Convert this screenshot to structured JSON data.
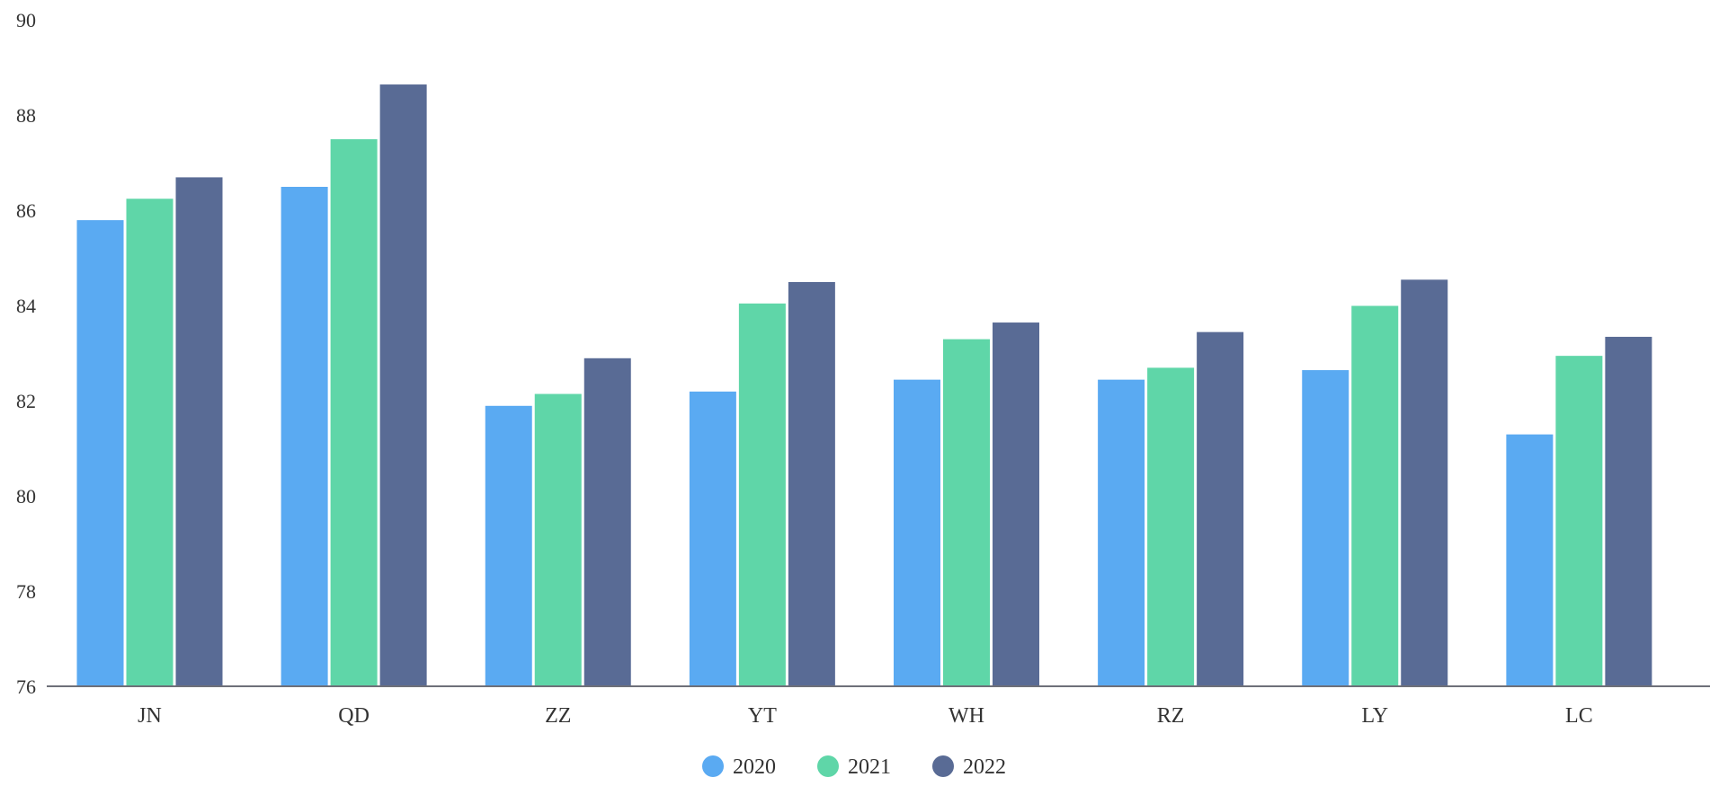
{
  "chart_data": {
    "type": "bar",
    "categories": [
      "JN",
      "QD",
      "ZZ",
      "YT",
      "WH",
      "RZ",
      "LY",
      "LC"
    ],
    "series": [
      {
        "name": "2020",
        "color": "#5aaaf2",
        "values": [
          85.8,
          86.5,
          81.9,
          82.2,
          82.45,
          82.45,
          82.65,
          81.3
        ]
      },
      {
        "name": "2021",
        "color": "#5fd6a8",
        "values": [
          86.25,
          87.5,
          82.15,
          84.05,
          83.3,
          82.7,
          84.0,
          82.95
        ]
      },
      {
        "name": "2022",
        "color": "#596b95",
        "values": [
          86.7,
          88.65,
          82.9,
          84.5,
          83.65,
          83.45,
          84.55,
          83.35
        ]
      }
    ],
    "y_ticks": [
      "76",
      "78",
      "80",
      "82",
      "84",
      "86",
      "88",
      "90"
    ],
    "ylim": [
      76,
      90
    ],
    "grid": false,
    "legend_position": "bottom-center"
  }
}
